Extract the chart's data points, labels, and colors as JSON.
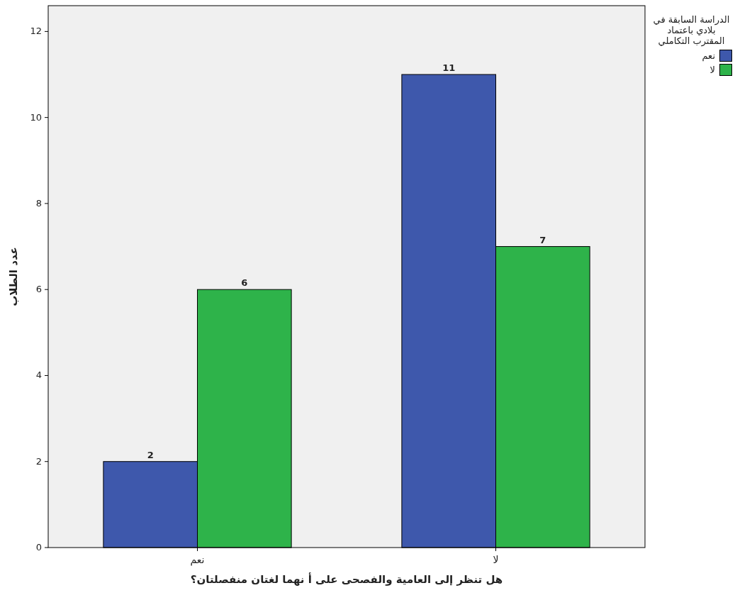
{
  "chart_data": {
    "type": "bar",
    "xlabel": "هل تنظر إلى العامية والفصحى على أ نهما لغتان منفصلتان؟",
    "ylabel": "عدد الطلاب",
    "legend_title": "الدراسة السابقة في بلادي باعتماد المقترب التكاملي",
    "categories": [
      "نعم",
      "لا"
    ],
    "series": [
      {
        "name": "نعم",
        "color": "#3e58ac",
        "values": [
          2,
          11
        ]
      },
      {
        "name": "لا",
        "color": "#2eb34a",
        "values": [
          6,
          7
        ]
      }
    ],
    "ylim": [
      0,
      12.6
    ],
    "yticks": [
      0,
      2,
      4,
      6,
      8,
      10,
      12
    ],
    "data_labels": true,
    "legend": "top right",
    "grid": false
  }
}
